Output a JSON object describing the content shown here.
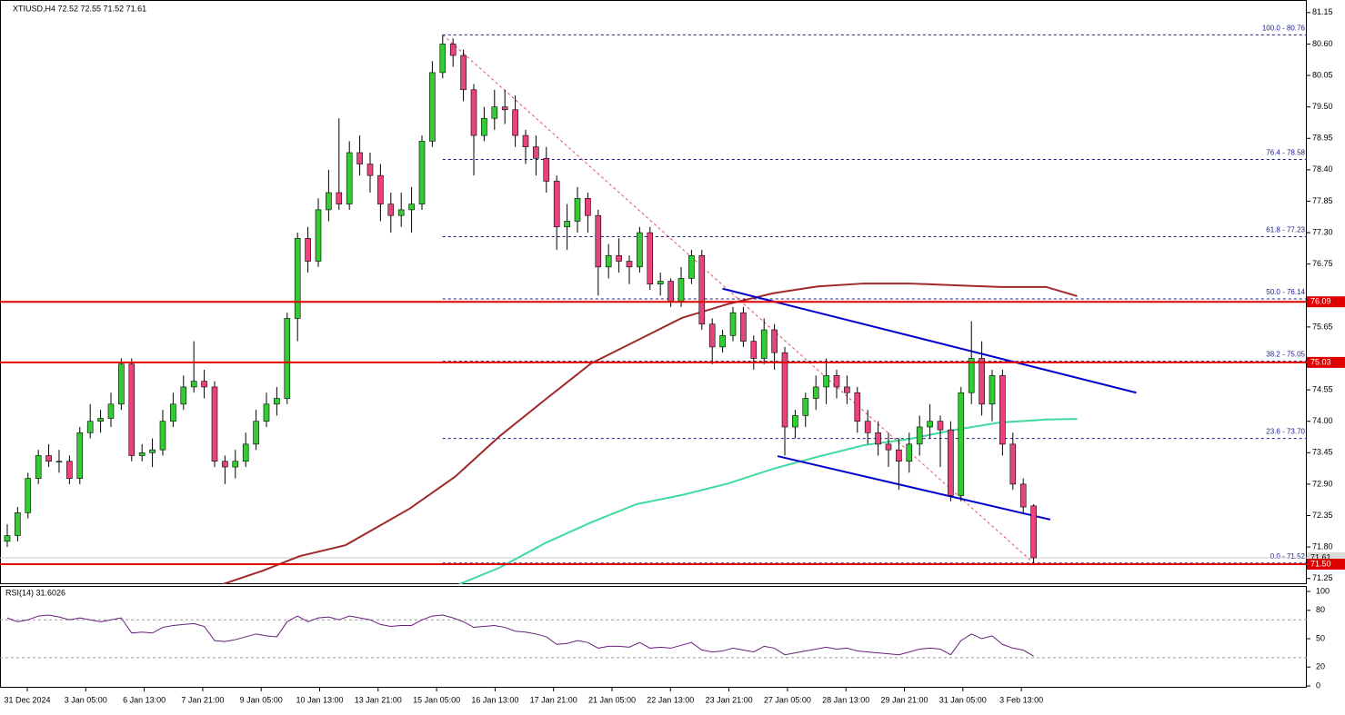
{
  "chart_data": [
    {
      "type": "candlestick",
      "title": "XTIUSD,H4  72.52 72.55 71.52 71.61",
      "xlim": [
        -0.7,
        125.35
      ],
      "ylim": [
        71.15,
        81.37
      ],
      "yticks": [
        81.15,
        {
          "value": 80.6,
          "label": "80.60"
        },
        80.05,
        {
          "value": 79.5,
          "label": "79.50"
        },
        78.95,
        {
          "value": 78.4,
          "label": "78.40"
        },
        77.85,
        {
          "value": 77.3,
          "label": "77.30"
        },
        76.75,
        75.65,
        74.55,
        {
          "value": 74.0,
          "label": "74.00"
        },
        73.45,
        {
          "value": 72.9,
          "label": "72.90"
        },
        72.35,
        {
          "value": 71.8,
          "label": "71.80"
        },
        71.25
      ],
      "xtick_labels": [
        "31 Dec 2024",
        "3 Jan 05:00",
        "6 Jan 13:00",
        "7 Jan 21:00",
        "9 Jan 05:00",
        "10 Jan 13:00",
        "13 Jan 21:00",
        "15 Jan 05:00",
        "16 Jan 13:00",
        "17 Jan 21:00",
        "21 Jan 05:00",
        "22 Jan 13:00",
        "23 Jan 21:00",
        "27 Jan 05:00",
        "28 Jan 13:00",
        "29 Jan 21:00",
        "31 Jan 05:00",
        "3 Feb 13:00"
      ],
      "up_color": "#33cc33",
      "down_color": "#e8437e",
      "ohlc": [
        [
          71.9,
          72.2,
          71.8,
          72.0
        ],
        [
          72.0,
          72.5,
          71.9,
          72.4
        ],
        [
          72.4,
          73.1,
          72.3,
          73.0
        ],
        [
          73.0,
          73.5,
          72.9,
          73.4
        ],
        [
          73.4,
          73.6,
          73.2,
          73.3
        ],
        [
          73.3,
          73.5,
          73.1,
          73.3
        ],
        [
          73.3,
          73.4,
          72.9,
          73.0
        ],
        [
          73.0,
          73.9,
          72.9,
          73.8
        ],
        [
          73.8,
          74.3,
          73.7,
          74.0
        ],
        [
          74.0,
          74.2,
          73.8,
          74.05
        ],
        [
          74.05,
          74.5,
          73.9,
          74.3
        ],
        [
          74.3,
          75.1,
          74.2,
          75.0
        ],
        [
          75.0,
          75.1,
          73.3,
          73.4
        ],
        [
          73.4,
          73.6,
          73.3,
          73.45
        ],
        [
          73.45,
          73.7,
          73.2,
          73.5
        ],
        [
          73.5,
          74.2,
          73.4,
          74.0
        ],
        [
          74.0,
          74.5,
          73.9,
          74.3
        ],
        [
          74.3,
          74.8,
          74.2,
          74.6
        ],
        [
          74.6,
          75.4,
          74.5,
          74.7
        ],
        [
          74.7,
          74.9,
          74.4,
          74.6
        ],
        [
          74.6,
          74.7,
          73.2,
          73.3
        ],
        [
          73.3,
          73.4,
          72.9,
          73.2
        ],
        [
          73.2,
          73.5,
          73.0,
          73.3
        ],
        [
          73.3,
          73.8,
          73.2,
          73.6
        ],
        [
          73.6,
          74.2,
          73.5,
          74.0
        ],
        [
          74.0,
          74.5,
          73.9,
          74.3
        ],
        [
          74.3,
          74.6,
          74.1,
          74.4
        ],
        [
          74.4,
          75.9,
          74.3,
          75.8
        ],
        [
          75.8,
          77.3,
          75.4,
          77.2
        ],
        [
          77.2,
          77.4,
          76.6,
          76.8
        ],
        [
          76.8,
          77.9,
          76.7,
          77.7
        ],
        [
          77.7,
          78.4,
          77.5,
          78.0
        ],
        [
          78.0,
          79.3,
          77.7,
          77.8
        ],
        [
          77.8,
          78.9,
          77.7,
          78.7
        ],
        [
          78.7,
          79.0,
          78.3,
          78.5
        ],
        [
          78.5,
          78.7,
          78.0,
          78.3
        ],
        [
          78.3,
          78.5,
          77.5,
          77.8
        ],
        [
          77.8,
          78.0,
          77.3,
          77.6
        ],
        [
          77.6,
          78.0,
          77.4,
          77.7
        ],
        [
          77.7,
          78.1,
          77.3,
          77.8
        ],
        [
          77.8,
          79.0,
          77.7,
          78.9
        ],
        [
          78.9,
          80.3,
          78.8,
          80.1
        ],
        [
          80.1,
          80.76,
          80.0,
          80.6
        ],
        [
          80.6,
          80.7,
          80.2,
          80.4
        ],
        [
          80.4,
          80.5,
          79.6,
          79.8
        ],
        [
          79.8,
          79.9,
          78.3,
          79.0
        ],
        [
          79.0,
          79.5,
          78.9,
          79.3
        ],
        [
          79.3,
          79.8,
          79.1,
          79.5
        ],
        [
          79.5,
          79.8,
          79.2,
          79.45
        ],
        [
          79.45,
          79.7,
          78.8,
          79.0
        ],
        [
          79.0,
          79.1,
          78.5,
          78.8
        ],
        [
          78.8,
          79.0,
          78.3,
          78.6
        ],
        [
          78.6,
          78.8,
          78.0,
          78.2
        ],
        [
          78.2,
          78.3,
          77.0,
          77.4
        ],
        [
          77.4,
          77.8,
          77.0,
          77.5
        ],
        [
          77.5,
          78.1,
          77.3,
          77.9
        ],
        [
          77.9,
          78.0,
          77.3,
          77.6
        ],
        [
          77.6,
          77.7,
          76.2,
          76.7
        ],
        [
          76.7,
          77.1,
          76.5,
          76.9
        ],
        [
          76.9,
          77.2,
          76.6,
          76.8
        ],
        [
          76.8,
          76.9,
          76.4,
          76.7
        ],
        [
          76.7,
          77.4,
          76.6,
          77.3
        ],
        [
          77.3,
          77.4,
          76.3,
          76.4
        ],
        [
          76.4,
          76.6,
          76.2,
          76.45
        ],
        [
          76.45,
          76.5,
          76.0,
          76.1
        ],
        [
          76.1,
          76.7,
          76.0,
          76.5
        ],
        [
          76.5,
          77.0,
          76.4,
          76.9
        ],
        [
          76.9,
          77.0,
          75.6,
          75.7
        ],
        [
          75.7,
          75.8,
          75.0,
          75.3
        ],
        [
          75.3,
          75.6,
          75.2,
          75.5
        ],
        [
          75.5,
          76.0,
          75.4,
          75.9
        ],
        [
          75.9,
          76.0,
          75.3,
          75.4
        ],
        [
          75.4,
          75.5,
          74.9,
          75.1
        ],
        [
          75.1,
          75.8,
          75.0,
          75.6
        ],
        [
          75.6,
          75.7,
          74.9,
          75.2
        ],
        [
          75.2,
          75.3,
          73.4,
          73.9
        ],
        [
          73.9,
          74.2,
          73.7,
          74.1
        ],
        [
          74.1,
          74.5,
          73.9,
          74.4
        ],
        [
          74.4,
          74.8,
          74.2,
          74.6
        ],
        [
          74.6,
          75.1,
          74.3,
          74.8
        ],
        [
          74.8,
          74.9,
          74.4,
          74.6
        ],
        [
          74.6,
          74.8,
          74.3,
          74.5
        ],
        [
          74.5,
          74.6,
          73.8,
          74.0
        ],
        [
          74.0,
          74.2,
          73.6,
          73.8
        ],
        [
          73.8,
          74.0,
          73.4,
          73.6
        ],
        [
          73.6,
          73.8,
          73.2,
          73.5
        ],
        [
          73.5,
          73.7,
          72.8,
          73.3
        ],
        [
          73.3,
          73.8,
          73.1,
          73.6
        ],
        [
          73.6,
          74.1,
          73.4,
          73.9
        ],
        [
          73.9,
          74.3,
          73.7,
          74.0
        ],
        [
          74.0,
          74.1,
          73.2,
          73.85
        ],
        [
          73.85,
          74.0,
          72.6,
          72.7
        ],
        [
          72.7,
          74.6,
          72.6,
          74.5
        ],
        [
          74.5,
          75.75,
          74.3,
          75.1
        ],
        [
          75.1,
          75.4,
          74.1,
          74.3
        ],
        [
          74.3,
          74.9,
          74.0,
          74.8
        ],
        [
          74.8,
          74.9,
          73.4,
          73.6
        ],
        [
          73.6,
          73.8,
          72.8,
          72.9
        ],
        [
          72.9,
          73.0,
          72.4,
          72.5
        ],
        [
          72.52,
          72.55,
          71.52,
          71.61
        ]
      ],
      "lines": [
        {
          "color": "#a0282a",
          "x": [
            20.8,
            24.7,
            28.2,
            32.6,
            38.8,
            43.2,
            47.5,
            51.9,
            56.3,
            60.7,
            65.1,
            69.5,
            73.9,
            78.2,
            82.6,
            87.0,
            91.4,
            95.8,
            100.2,
            103.2
          ],
          "values": [
            71.15,
            71.39,
            71.64,
            71.83,
            72.47,
            73.03,
            73.74,
            74.38,
            75.01,
            75.41,
            75.81,
            76.05,
            76.24,
            76.36,
            76.41,
            76.41,
            76.38,
            76.35,
            76.35,
            76.19
          ]
        },
        {
          "color": "#3ddc9c",
          "x": [
            43.6,
            47.5,
            51.9,
            56.3,
            60.7,
            65.1,
            69.5,
            73.9,
            78.2,
            82.6,
            87.0,
            91.4,
            95.8,
            100.2,
            103.2
          ],
          "values": [
            71.15,
            71.44,
            71.87,
            72.23,
            72.55,
            72.71,
            72.91,
            73.17,
            73.38,
            73.58,
            73.69,
            73.85,
            73.98,
            74.03,
            74.04
          ]
        }
      ],
      "trendlines": [
        {
          "color": "#0000cc",
          "x": [
            69.0,
            108.9
          ],
          "values": [
            76.32,
            74.5
          ]
        },
        {
          "color": "#0000cc",
          "x": [
            74.3,
            100.6
          ],
          "values": [
            73.39,
            72.28
          ]
        }
      ],
      "fib": {
        "color": "#1a1a8c",
        "trend_color": "#e05050",
        "x": [
          42,
          99
        ],
        "values": [
          80.76,
          71.52
        ],
        "levels": [
          {
            "value": 80.76,
            "label": "100.0 - 80.76"
          },
          {
            "value": 78.58,
            "label": "76.4 - 78.58"
          },
          {
            "value": 77.23,
            "label": "61.8 - 77.23"
          },
          {
            "value": 76.14,
            "label": "50.0 - 76.14"
          },
          {
            "value": 75.05,
            "label": "38.2 - 75.05"
          },
          {
            "value": 73.7,
            "label": "23.6 - 73.70"
          },
          {
            "value": 71.52,
            "label": "0.0 - 71.52"
          }
        ]
      },
      "hlines_color": "#e00000",
      "hlines": [
        76.09,
        75.03,
        {
          "value": 71.5,
          "label": "71.50"
        }
      ],
      "last_price": 71.61
    },
    {
      "type": "line",
      "title": "RSI(14) 31.6026",
      "color": "#6a1f7a",
      "xlim": [
        -0.7,
        125.35
      ],
      "ylim": [
        -1.9,
        105.8
      ],
      "yticks": [
        100,
        80,
        50,
        20,
        0
      ],
      "levels": [
        70,
        30
      ],
      "values": [
        72,
        68,
        70,
        74,
        75,
        73,
        70,
        72,
        70,
        68,
        70,
        72,
        56,
        57,
        56,
        62,
        64,
        65,
        66,
        63,
        48,
        47,
        49,
        52,
        55,
        53,
        52,
        68,
        74,
        68,
        72,
        73,
        70,
        74,
        72,
        70,
        65,
        63,
        64,
        64,
        70,
        74,
        75,
        72,
        68,
        62,
        63,
        64,
        62,
        58,
        57,
        55,
        52,
        44,
        45,
        48,
        46,
        40,
        42,
        42,
        41,
        46,
        40,
        41,
        40,
        43,
        46,
        38,
        36,
        37,
        40,
        38,
        36,
        42,
        40,
        33,
        35,
        37,
        39,
        41,
        39,
        40,
        37,
        36,
        35,
        34,
        33,
        36,
        39,
        40,
        39,
        33,
        48,
        55,
        50,
        53,
        44,
        40,
        38,
        31.6026
      ]
    }
  ]
}
